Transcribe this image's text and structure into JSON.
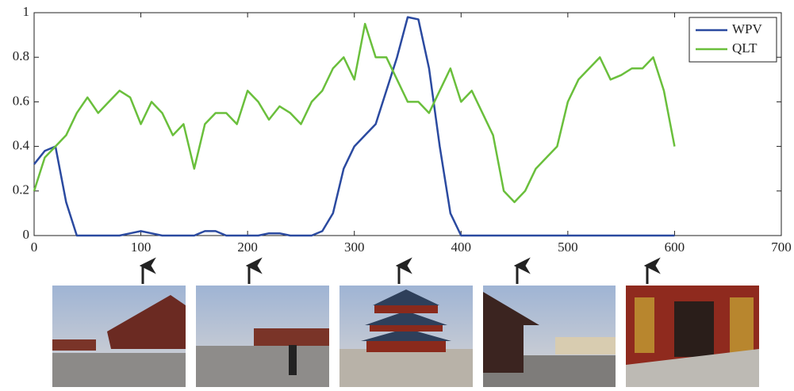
{
  "chart_data": {
    "type": "line",
    "x": [
      0,
      10,
      20,
      30,
      40,
      50,
      60,
      70,
      80,
      90,
      100,
      110,
      120,
      130,
      140,
      150,
      160,
      170,
      180,
      190,
      200,
      210,
      220,
      230,
      240,
      250,
      260,
      270,
      280,
      290,
      300,
      310,
      320,
      330,
      340,
      350,
      360,
      370,
      380,
      390,
      400,
      410,
      420,
      430,
      440,
      450,
      460,
      470,
      480,
      490,
      500,
      510,
      520,
      530,
      540,
      550,
      560,
      570,
      580,
      590,
      600
    ],
    "series": [
      {
        "name": "WPV",
        "color": "#2b4aa0",
        "values": [
          0.32,
          0.38,
          0.4,
          0.15,
          0,
          0,
          0,
          0,
          0,
          0.01,
          0.02,
          0.01,
          0,
          0,
          0,
          0,
          0.02,
          0.02,
          0,
          0,
          0,
          0,
          0.01,
          0.01,
          0,
          0,
          0,
          0.02,
          0.1,
          0.3,
          0.4,
          0.45,
          0.5,
          0.65,
          0.8,
          0.98,
          0.97,
          0.75,
          0.4,
          0.1,
          0,
          0,
          0,
          0,
          0,
          0,
          0,
          0,
          0,
          0,
          0,
          0,
          0,
          0,
          0,
          0,
          0,
          0,
          0,
          0,
          0
        ]
      },
      {
        "name": "QLT",
        "color": "#6abf3c",
        "values": [
          0.2,
          0.35,
          0.4,
          0.45,
          0.55,
          0.62,
          0.55,
          0.6,
          0.65,
          0.62,
          0.5,
          0.6,
          0.55,
          0.45,
          0.5,
          0.3,
          0.5,
          0.55,
          0.55,
          0.5,
          0.65,
          0.6,
          0.52,
          0.58,
          0.55,
          0.5,
          0.6,
          0.65,
          0.75,
          0.8,
          0.7,
          0.95,
          0.8,
          0.8,
          0.7,
          0.6,
          0.6,
          0.55,
          0.65,
          0.75,
          0.6,
          0.65,
          0.55,
          0.45,
          0.2,
          0.15,
          0.2,
          0.3,
          0.35,
          0.4,
          0.6,
          0.7,
          0.75,
          0.8,
          0.7,
          0.72,
          0.75,
          0.75,
          0.8,
          0.65,
          0.4
        ]
      }
    ],
    "xlim": [
      0,
      700
    ],
    "xticks": [
      0,
      100,
      200,
      300,
      400,
      500,
      600,
      700
    ],
    "ylim": [
      0,
      1
    ],
    "yticks": [
      0,
      0.2,
      0.4,
      0.6,
      0.8,
      1
    ],
    "legend": "top-right"
  }
}
